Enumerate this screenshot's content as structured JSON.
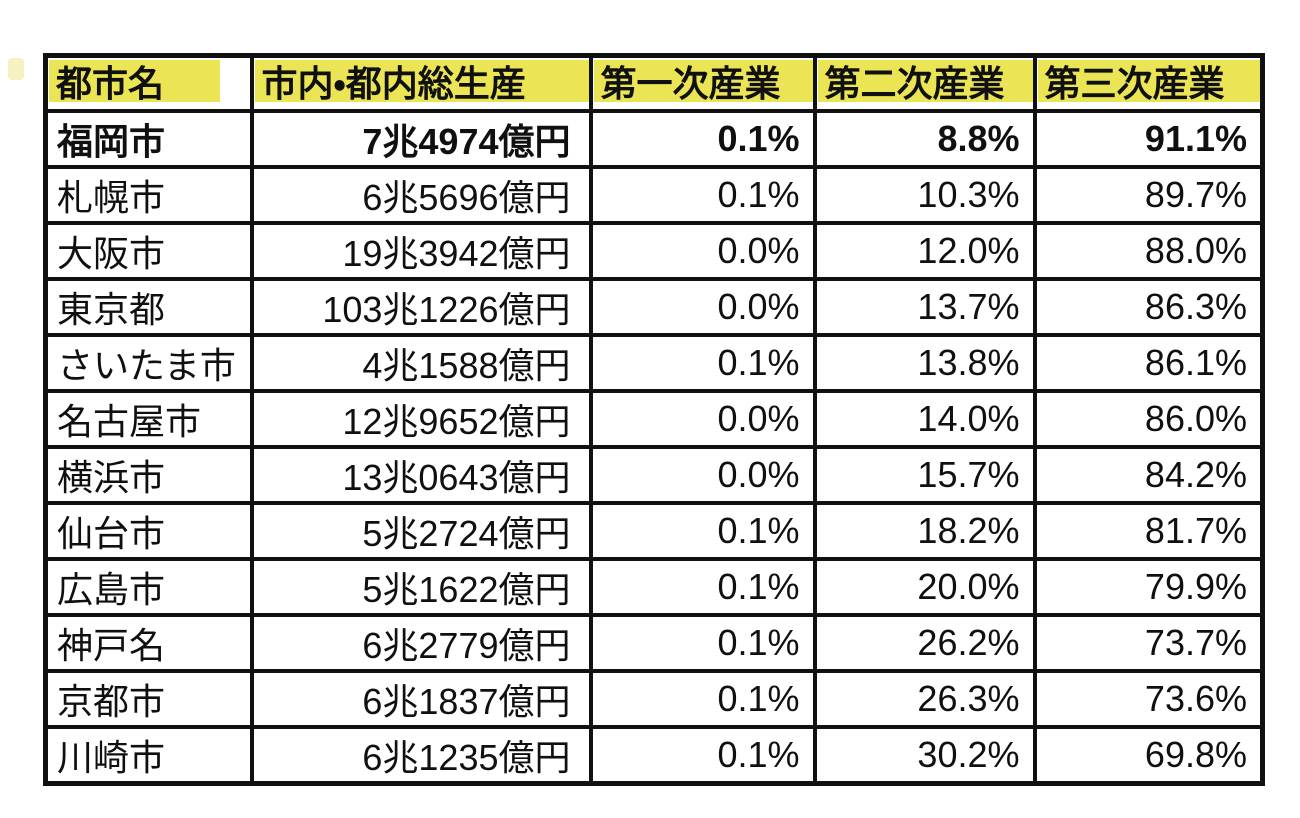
{
  "chart_data": {
    "type": "table",
    "title": "",
    "columns": [
      "都市名",
      "市内・都内総生産",
      "第一次産業",
      "第二次産業",
      "第三次産業"
    ],
    "rows": [
      [
        "福岡市",
        "7兆4974億円",
        "0.1%",
        "8.8%",
        "91.1%"
      ],
      [
        "札幌市",
        "6兆5696億円",
        "0.1%",
        "10.3%",
        "89.7%"
      ],
      [
        "大阪市",
        "19兆3942億円",
        "0.0%",
        "12.0%",
        "88.0%"
      ],
      [
        "東京都",
        "103兆1226億円",
        "0.0%",
        "13.7%",
        "86.3%"
      ],
      [
        "さいたま市",
        "4兆1588億円",
        "0.1%",
        "13.8%",
        "86.1%"
      ],
      [
        "名古屋市",
        "12兆9652億円",
        "0.0%",
        "14.0%",
        "86.0%"
      ],
      [
        "横浜市",
        "13兆0643億円",
        "0.0%",
        "15.7%",
        "84.2%"
      ],
      [
        "仙台市",
        "5兆2724億円",
        "0.1%",
        "18.2%",
        "81.7%"
      ],
      [
        "広島市",
        "5兆1622億円",
        "0.1%",
        "20.0%",
        "79.9%"
      ],
      [
        "神戸名",
        "6兆2779億円",
        "0.1%",
        "26.2%",
        "73.7%"
      ],
      [
        "京都市",
        "6兆1837億円",
        "0.1%",
        "26.3%",
        "73.6%"
      ],
      [
        "川崎市",
        "6兆1235億円",
        "0.1%",
        "30.2%",
        "69.8%"
      ]
    ],
    "bold_row_index": 0,
    "layout": {
      "header_fill": "#EBE555",
      "border_color": "#111111",
      "text_color": "#101010",
      "city_align": "left",
      "value_align": "right"
    }
  }
}
